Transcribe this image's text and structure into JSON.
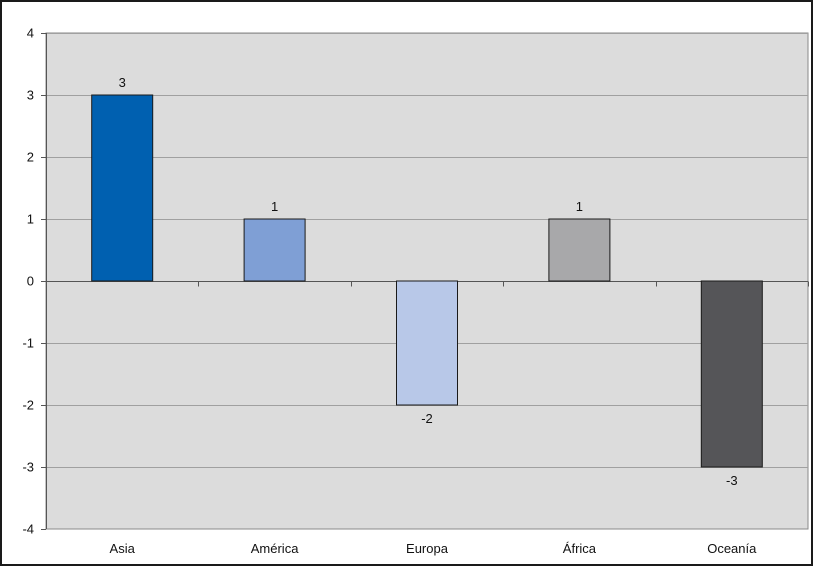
{
  "chart_data": {
    "type": "bar",
    "title": "",
    "xlabel": "",
    "ylabel": "",
    "categories": [
      "Asia",
      "América",
      "Europa",
      "África",
      "Oceanía"
    ],
    "values": [
      3,
      1,
      -2,
      1,
      -3
    ],
    "data_labels": [
      "3",
      "1",
      "-2",
      "1",
      "-3"
    ],
    "bar_colors": [
      "#0060b0",
      "#7f9fd5",
      "#b8c8e8",
      "#a8a8aa",
      "#555558"
    ],
    "ylim": [
      -4,
      4
    ],
    "yticks": [
      4,
      3,
      2,
      1,
      0,
      -1,
      -2,
      -3,
      -4
    ],
    "grid": true,
    "legend": "none",
    "plot_background": "#dcdcdc",
    "gridline_color": "#a0a0a0",
    "bar_border_color": "#1a1a1a"
  }
}
